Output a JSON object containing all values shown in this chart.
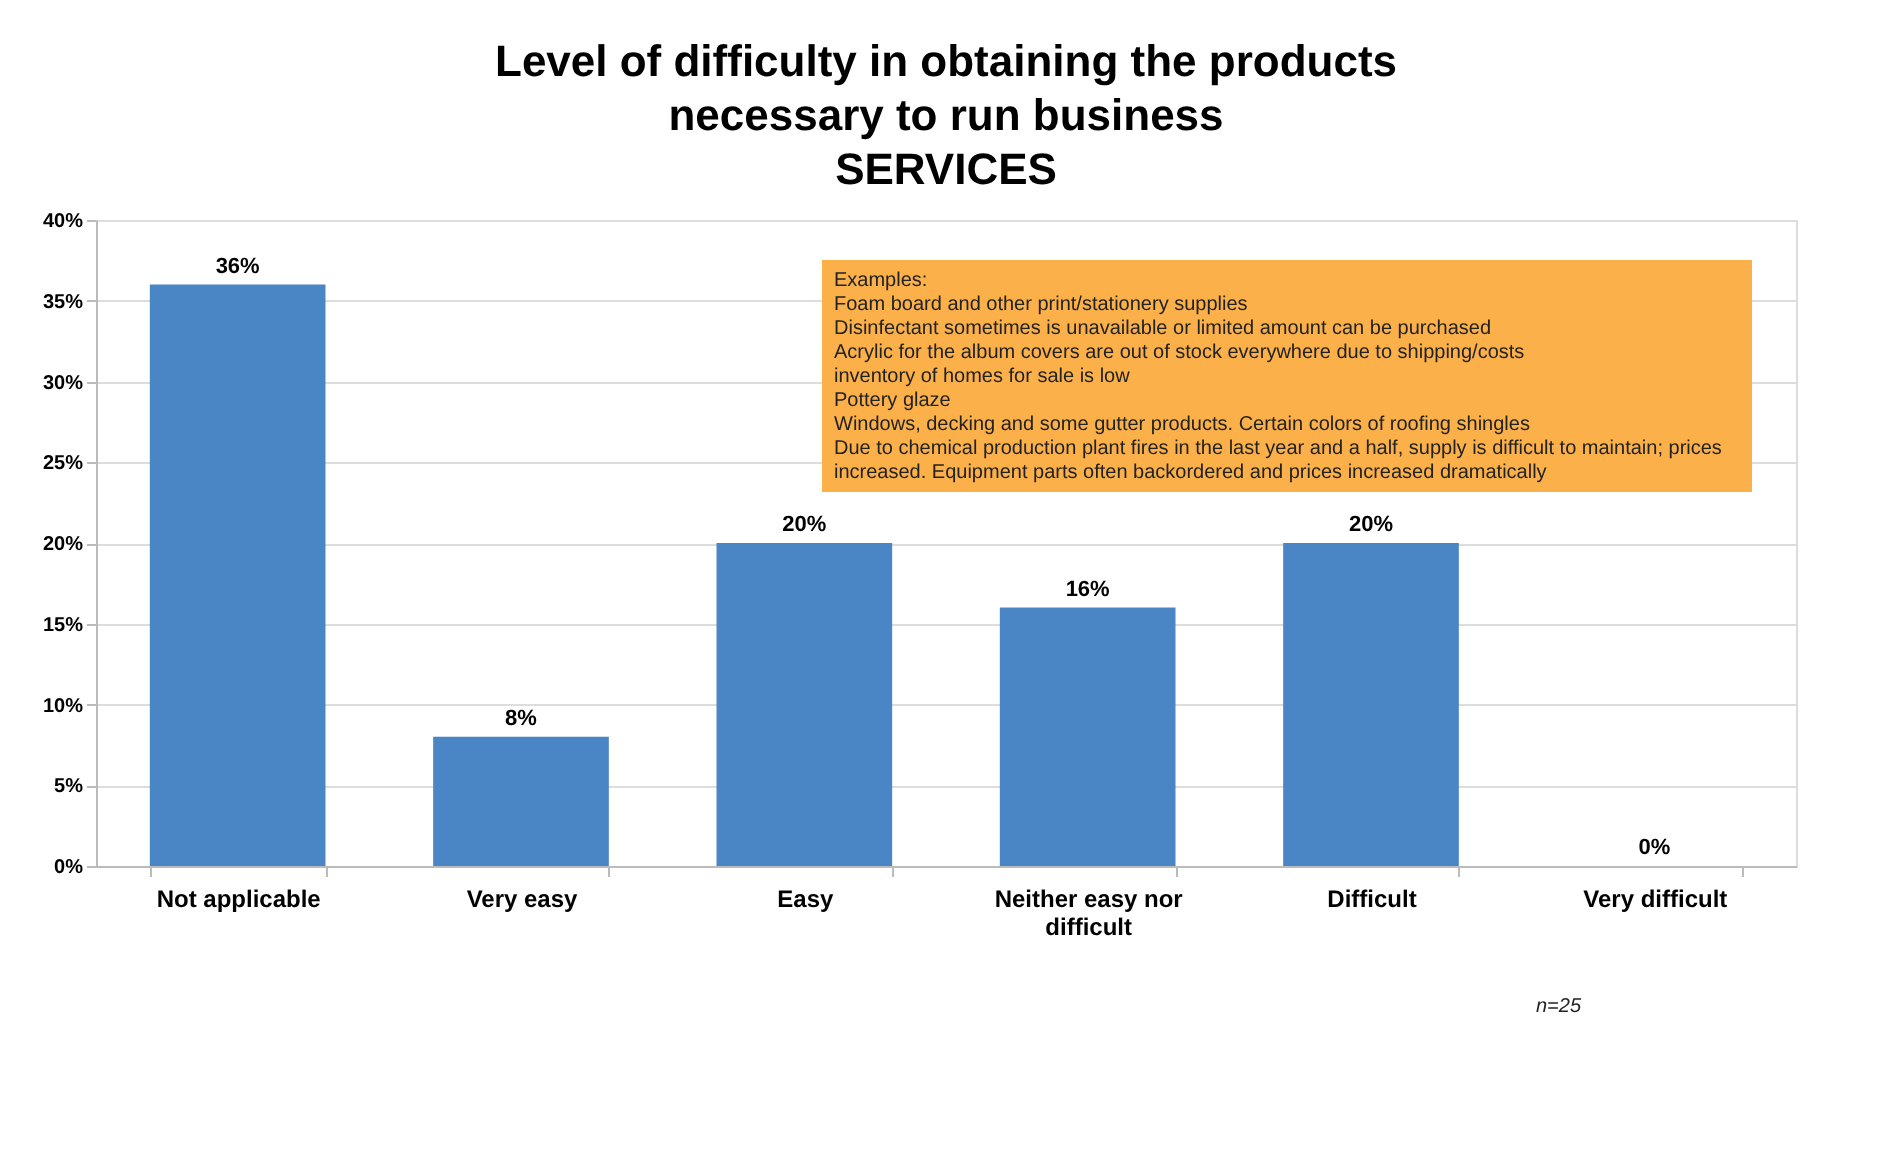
{
  "chart_data": {
    "type": "bar",
    "title": "Level of difficulty in obtaining the products necessary to run business",
    "subtitle": "SERVICES",
    "categories": [
      "Not applicable",
      "Very easy",
      "Easy",
      "Neither easy nor difficult",
      "Difficult",
      "Very difficult"
    ],
    "values": [
      36,
      8,
      20,
      16,
      20,
      0
    ],
    "value_labels": [
      "36%",
      "8%",
      "20%",
      "16%",
      "20%",
      "0%"
    ],
    "color": "#4a85c6",
    "ylim": [
      0,
      40
    ],
    "yticks": [
      {
        "value": 0,
        "label": "0%"
      },
      {
        "value": 5,
        "label": "5%"
      },
      {
        "value": 10,
        "label": "10%"
      },
      {
        "value": 15,
        "label": "15%"
      },
      {
        "value": 20,
        "label": "20%"
      },
      {
        "value": 25,
        "label": "25%"
      },
      {
        "value": 30,
        "label": "30%"
      },
      {
        "value": 35,
        "label": "35%"
      },
      {
        "value": 40,
        "label": "40%"
      }
    ],
    "grid": "y",
    "annotations": [
      "Examples:\nFoam board and other print/stationery supplies\nDisinfectant sometimes is unavailable or limited amount can be purchased\nAcrylic for the album covers are out of stock everywhere due to shipping/costs\ninventory of homes for sale is low\nPottery glaze\nWindows, decking and some gutter products. Certain colors of roofing shingles\nDue to chemical production plant fires in the last year and a half, supply is difficult to maintain; prices\nincreased. Equipment parts often backordered and prices increased dramatically",
      "n=25"
    ]
  }
}
